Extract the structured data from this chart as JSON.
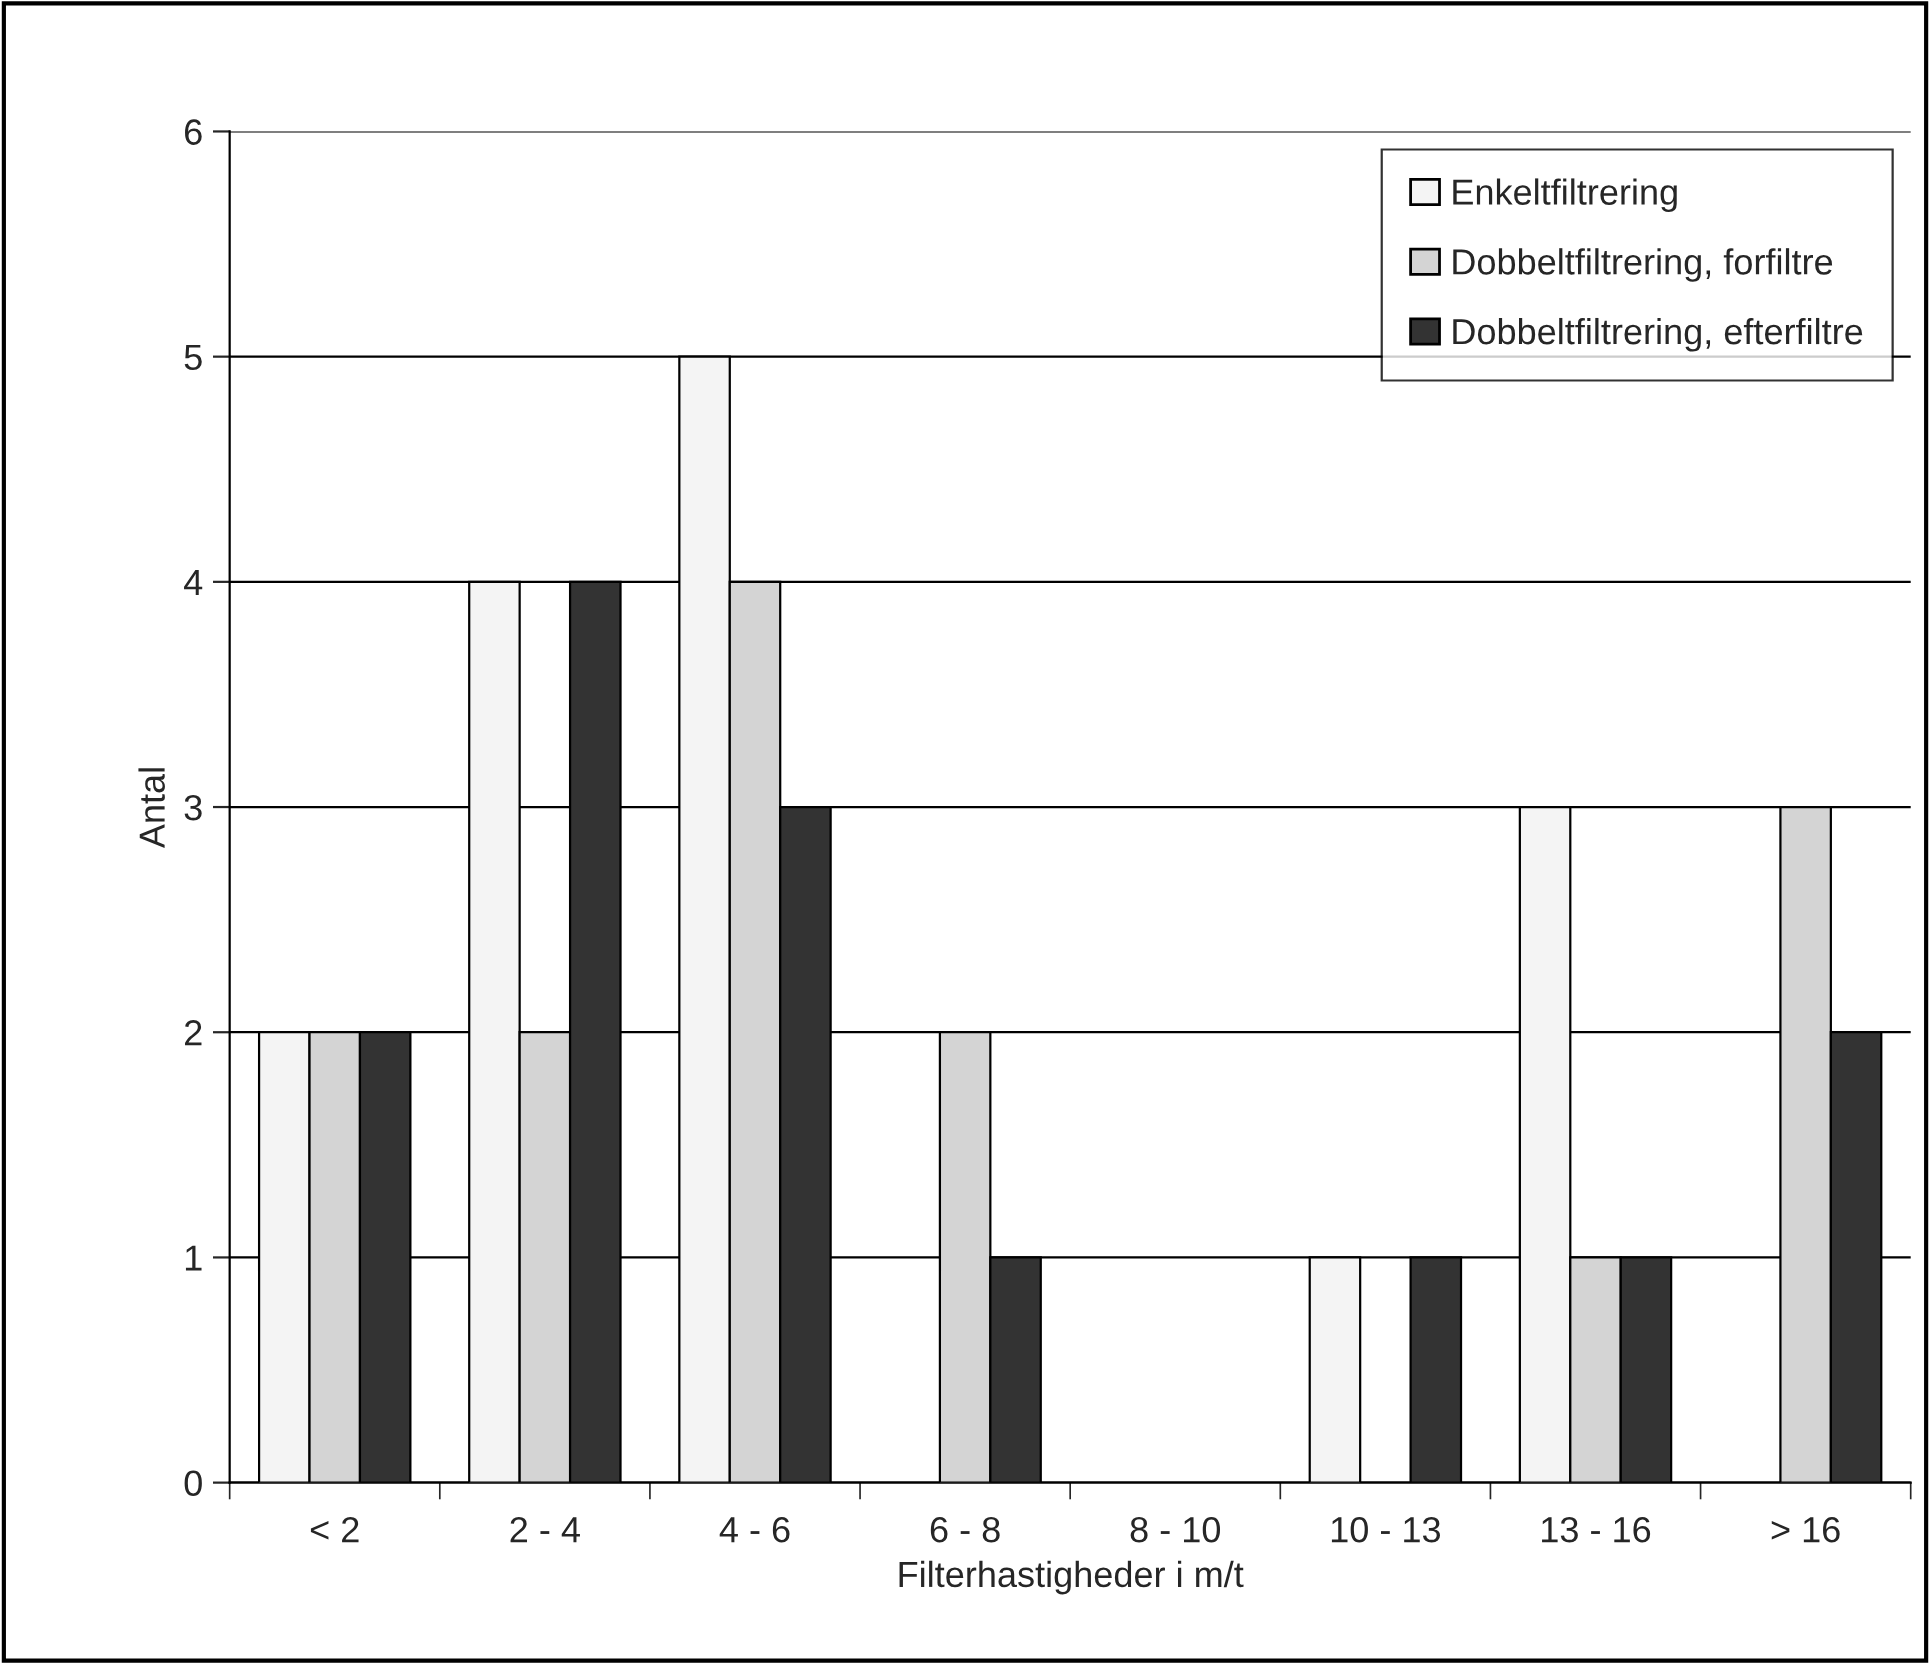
{
  "chart_data": {
    "type": "bar",
    "xlabel": "Filterhastigheder i m/t",
    "ylabel": "Antal",
    "categories": [
      "< 2",
      "2 - 4",
      "4 - 6",
      "6 - 8",
      "8 - 10",
      "10 - 13",
      "13 - 16",
      "> 16"
    ],
    "series": [
      {
        "name": "Enkeltfiltrering",
        "color": "#f4f4f4",
        "values": [
          2,
          4,
          5,
          0,
          0,
          1,
          3,
          0
        ]
      },
      {
        "name": "Dobbeltfiltrering, forfiltre",
        "color": "#d4d4d4",
        "values": [
          2,
          2,
          4,
          2,
          0,
          0,
          1,
          3
        ]
      },
      {
        "name": "Dobbeltfiltrering, efterfiltre",
        "color": "#333333",
        "values": [
          2,
          4,
          3,
          1,
          0,
          1,
          1,
          2
        ]
      }
    ],
    "ylim": [
      0,
      6
    ],
    "yticks": [
      0,
      1,
      2,
      3,
      4,
      5,
      6
    ],
    "grid": "y",
    "legend": "top right"
  }
}
